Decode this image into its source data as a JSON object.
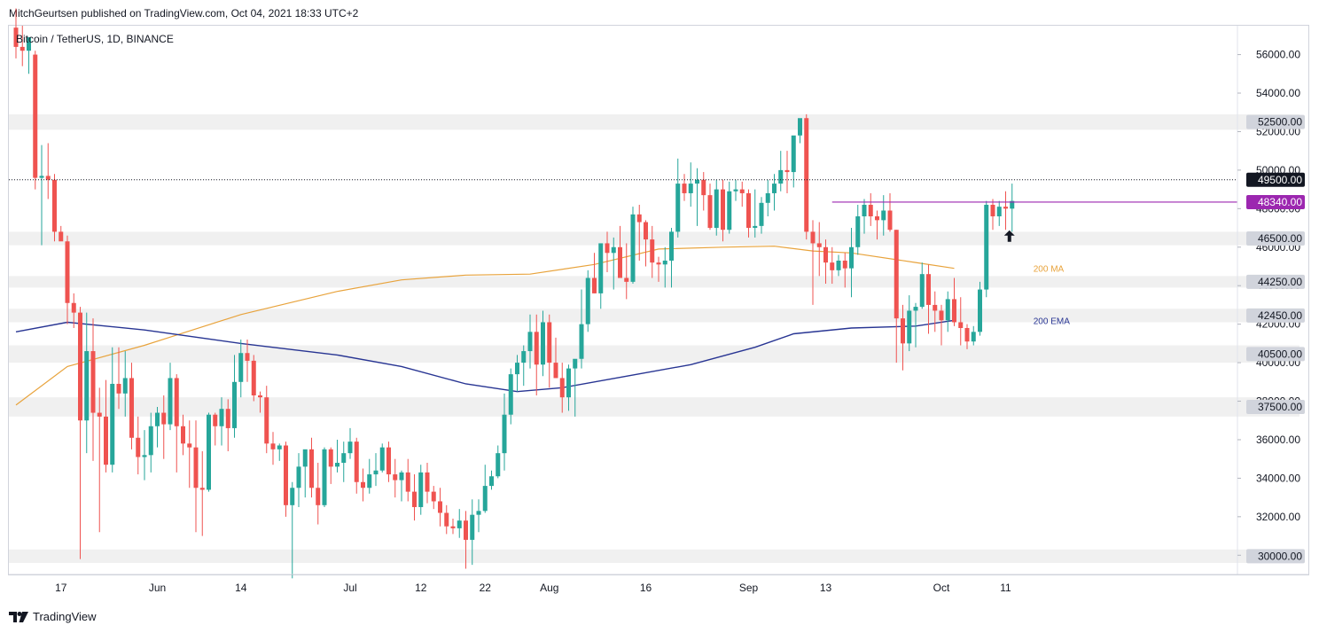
{
  "header": {
    "published": "MitchGeurtsen published on TradingView.com, Oct 04, 2021 18:33 UTC+2",
    "symbol": "Bitcoin / TetherUS, 1D, BINANCE"
  },
  "footer": {
    "brand": "TradingView"
  },
  "colors": {
    "up": "#26a69a",
    "down": "#ef5350",
    "ma": "#e8a33c",
    "ema": "#283593",
    "resistance": "#9c27b0",
    "zone": "#f0f0f0",
    "tag": "#d1d4dc",
    "price_tag": "#131722"
  },
  "chart_data": {
    "type": "candlestick",
    "title": "Bitcoin / TetherUS, 1D, BINANCE",
    "ylim": [
      29000,
      57500
    ],
    "y_ticks": [
      30000,
      32000,
      34000,
      36000,
      38000,
      40000,
      42000,
      44000,
      46000,
      48000,
      50000,
      52000,
      54000,
      56000
    ],
    "y_tick_labels": [
      "30000.00",
      "32000.00",
      "34000.00",
      "36000.00",
      "38000.00",
      "40000.00",
      "42000.00",
      "44000.00",
      "46000.00",
      "48000.00",
      "50000.00",
      "52000.00",
      "54000.00",
      "56000.00"
    ],
    "x_ticks": [
      {
        "index": 7,
        "label": "17"
      },
      {
        "index": 22,
        "label": "Jun"
      },
      {
        "index": 35,
        "label": "14"
      },
      {
        "index": 52,
        "label": "Jul"
      },
      {
        "index": 63,
        "label": "12"
      },
      {
        "index": 73,
        "label": "22"
      },
      {
        "index": 83,
        "label": "Aug"
      },
      {
        "index": 98,
        "label": "16"
      },
      {
        "index": 114,
        "label": "Sep"
      },
      {
        "index": 126,
        "label": "13"
      },
      {
        "index": 144,
        "label": "Oct"
      },
      {
        "index": 154,
        "label": "11"
      }
    ],
    "zones": [
      {
        "label": "52500.00",
        "from": 52100,
        "to": 52900
      },
      {
        "label": "46500.00",
        "from": 46100,
        "to": 46800
      },
      {
        "label": "44250.00",
        "from": 43900,
        "to": 44500
      },
      {
        "label": "42450.00",
        "from": 42100,
        "to": 42800
      },
      {
        "label": "40500.00",
        "from": 40000,
        "to": 40900
      },
      {
        "label": "37500.00",
        "from": 37200,
        "to": 38200
      },
      {
        "label": "30000.00",
        "from": 29600,
        "to": 30300
      }
    ],
    "current_price": {
      "label": "49500.00",
      "value": 49500
    },
    "resistance": {
      "label": "48340.00",
      "value": 48340,
      "start_index": 127
    },
    "indicators": {
      "ma_label": "200 MA",
      "ema_label": "200 EMA",
      "ma": [
        [
          0,
          37800
        ],
        [
          8,
          39800
        ],
        [
          20,
          40900
        ],
        [
          35,
          42500
        ],
        [
          50,
          43700
        ],
        [
          60,
          44300
        ],
        [
          70,
          44550
        ],
        [
          80,
          44600
        ],
        [
          90,
          45100
        ],
        [
          100,
          45900
        ],
        [
          110,
          46000
        ],
        [
          118,
          46050
        ],
        [
          124,
          45800
        ],
        [
          130,
          45700
        ],
        [
          140,
          45200
        ],
        [
          146,
          44900
        ]
      ],
      "ema": [
        [
          0,
          41600
        ],
        [
          8,
          42100
        ],
        [
          20,
          41700
        ],
        [
          35,
          41000
        ],
        [
          50,
          40400
        ],
        [
          60,
          39800
        ],
        [
          70,
          38900
        ],
        [
          78,
          38500
        ],
        [
          85,
          38700
        ],
        [
          95,
          39300
        ],
        [
          105,
          39900
        ],
        [
          115,
          40800
        ],
        [
          121,
          41500
        ],
        [
          130,
          41800
        ],
        [
          140,
          41900
        ],
        [
          146,
          42200
        ]
      ]
    },
    "candles": [
      [
        57400,
        58400,
        55800,
        56400
      ],
      [
        56400,
        57500,
        55400,
        56200
      ],
      [
        56200,
        56900,
        55000,
        56900
      ],
      [
        56000,
        56200,
        49000,
        49600
      ],
      [
        49600,
        51300,
        46100,
        49700
      ],
      [
        49700,
        51400,
        48500,
        49500
      ],
      [
        49500,
        49800,
        46300,
        46800
      ],
      [
        46800,
        47100,
        46500,
        46300
      ],
      [
        46300,
        46600,
        42000,
        43100
      ],
      [
        43100,
        43600,
        41800,
        42600
      ],
      [
        42600,
        42900,
        29800,
        37000
      ],
      [
        37000,
        42600,
        35300,
        40600
      ],
      [
        40600,
        42300,
        34900,
        37400
      ],
      [
        37400,
        38700,
        31200,
        37200
      ],
      [
        37200,
        39100,
        34300,
        34700
      ],
      [
        34700,
        40800,
        34300,
        38900
      ],
      [
        38900,
        40800,
        37600,
        38400
      ],
      [
        38400,
        40600,
        37200,
        39200
      ],
      [
        39200,
        40000,
        35500,
        36100
      ],
      [
        36100,
        37200,
        34200,
        35100
      ],
      [
        35100,
        36500,
        33900,
        35200
      ],
      [
        35200,
        37400,
        34300,
        36700
      ],
      [
        36700,
        37700,
        35600,
        37400
      ],
      [
        37400,
        38300,
        35000,
        36800
      ],
      [
        36800,
        40000,
        36500,
        39200
      ],
      [
        39200,
        39400,
        34300,
        36700
      ],
      [
        36700,
        37300,
        35200,
        35800
      ],
      [
        35800,
        37000,
        33500,
        35600
      ],
      [
        35600,
        37000,
        31200,
        33500
      ],
      [
        33500,
        35400,
        31000,
        33400
      ],
      [
        33400,
        37400,
        33300,
        37300
      ],
      [
        37300,
        37400,
        35700,
        36700
      ],
      [
        36700,
        38200,
        35700,
        37600
      ],
      [
        37600,
        38100,
        35400,
        36600
      ],
      [
        36600,
        40400,
        36100,
        39000
      ],
      [
        39000,
        41200,
        38200,
        40500
      ],
      [
        40500,
        41200,
        39000,
        40100
      ],
      [
        40100,
        40400,
        38000,
        38300
      ],
      [
        38300,
        38500,
        37400,
        38200
      ],
      [
        38200,
        38800,
        35300,
        35800
      ],
      [
        35800,
        36400,
        34700,
        35500
      ],
      [
        35500,
        35800,
        34900,
        35700
      ],
      [
        35700,
        35900,
        32000,
        32600
      ],
      [
        32600,
        33800,
        28800,
        33500
      ],
      [
        33500,
        35300,
        32500,
        34600
      ],
      [
        34600,
        35300,
        33000,
        35500
      ],
      [
        35500,
        36100,
        33000,
        33500
      ],
      [
        33500,
        34800,
        31600,
        32600
      ],
      [
        32600,
        35600,
        32500,
        35500
      ],
      [
        35500,
        35600,
        33700,
        34600
      ],
      [
        34600,
        36000,
        34300,
        34800
      ],
      [
        34800,
        35900,
        33800,
        35300
      ],
      [
        35300,
        36600,
        35000,
        35900
      ],
      [
        35900,
        36100,
        33200,
        33800
      ],
      [
        33800,
        34500,
        32800,
        33500
      ],
      [
        33500,
        35000,
        33200,
        34200
      ],
      [
        34200,
        35300,
        33600,
        34400
      ],
      [
        34400,
        35800,
        34300,
        35600
      ],
      [
        35600,
        35900,
        33800,
        34200
      ],
      [
        34200,
        35000,
        33000,
        33900
      ],
      [
        33900,
        34400,
        32800,
        34300
      ],
      [
        34300,
        35000,
        32800,
        33300
      ],
      [
        33300,
        34200,
        31800,
        32500
      ],
      [
        32500,
        34700,
        32100,
        34300
      ],
      [
        34300,
        34800,
        32700,
        33300
      ],
      [
        33300,
        33600,
        32400,
        32800
      ],
      [
        32800,
        33500,
        31500,
        32200
      ],
      [
        32200,
        32600,
        31100,
        31500
      ],
      [
        31500,
        31900,
        31100,
        31400
      ],
      [
        31400,
        32400,
        30900,
        31800
      ],
      [
        31800,
        32300,
        29300,
        30800
      ],
      [
        30800,
        32900,
        29500,
        32100
      ],
      [
        32100,
        32900,
        31200,
        32300
      ],
      [
        32300,
        34700,
        32200,
        33600
      ],
      [
        33600,
        34400,
        33400,
        34100
      ],
      [
        34100,
        35700,
        34000,
        35300
      ],
      [
        35300,
        38400,
        34400,
        37300
      ],
      [
        37300,
        39700,
        36800,
        39400
      ],
      [
        39400,
        40400,
        38500,
        40000
      ],
      [
        40000,
        40900,
        38800,
        40600
      ],
      [
        40600,
        42500,
        39700,
        41600
      ],
      [
        41600,
        42500,
        38300,
        39900
      ],
      [
        39900,
        42700,
        39300,
        42100
      ],
      [
        42100,
        42500,
        38700,
        40000
      ],
      [
        40000,
        41300,
        39200,
        39200
      ],
      [
        39200,
        40000,
        37400,
        38200
      ],
      [
        38200,
        39900,
        37500,
        39700
      ],
      [
        39700,
        40100,
        37200,
        40200
      ],
      [
        40200,
        43800,
        39700,
        42000
      ],
      [
        42000,
        44800,
        41600,
        44400
      ],
      [
        44400,
        45700,
        43600,
        43600
      ],
      [
        43600,
        46000,
        42800,
        46200
      ],
      [
        46200,
        46800,
        44700,
        45700
      ],
      [
        45700,
        46500,
        43800,
        46000
      ],
      [
        46000,
        47100,
        44400,
        44400
      ],
      [
        44400,
        46200,
        43300,
        44200
      ],
      [
        44200,
        48100,
        44100,
        47700
      ],
      [
        47700,
        48200,
        45300,
        47300
      ],
      [
        47300,
        47400,
        45000,
        46400
      ],
      [
        46400,
        47100,
        44400,
        45200
      ],
      [
        45200,
        45500,
        44200,
        45100
      ],
      [
        45100,
        46000,
        43900,
        45300
      ],
      [
        45300,
        47000,
        43900,
        46800
      ],
      [
        46800,
        50600,
        46500,
        49300
      ],
      [
        49300,
        49800,
        48400,
        48800
      ],
      [
        48800,
        50400,
        48100,
        49300
      ],
      [
        49300,
        50100,
        47100,
        49500
      ],
      [
        49500,
        49900,
        47900,
        48700
      ],
      [
        48700,
        49300,
        46900,
        47000
      ],
      [
        47000,
        49500,
        46600,
        49000
      ],
      [
        49000,
        49500,
        46300,
        46900
      ],
      [
        46900,
        49400,
        46700,
        48900
      ],
      [
        48900,
        49500,
        48400,
        49000
      ],
      [
        49000,
        49400,
        48100,
        48800
      ],
      [
        48800,
        49000,
        46500,
        47000
      ],
      [
        47000,
        49000,
        46500,
        47100
      ],
      [
        47100,
        48600,
        46700,
        48300
      ],
      [
        48300,
        49500,
        47600,
        48800
      ],
      [
        48800,
        49800,
        47900,
        49300
      ],
      [
        49300,
        51000,
        48900,
        50000
      ],
      [
        50000,
        51000,
        48800,
        49900
      ],
      [
        49900,
        51600,
        49100,
        51800
      ],
      [
        51800,
        52600,
        51400,
        52700
      ],
      [
        52700,
        52900,
        46400,
        46800
      ],
      [
        46800,
        47400,
        43000,
        46200
      ],
      [
        46200,
        47300,
        44500,
        46000
      ],
      [
        46000,
        46400,
        44100,
        45200
      ],
      [
        45200,
        46000,
        44100,
        44800
      ],
      [
        44800,
        45600,
        44500,
        45300
      ],
      [
        45300,
        45700,
        43900,
        44900
      ],
      [
        44900,
        47000,
        43400,
        46000
      ],
      [
        46000,
        48200,
        45600,
        47600
      ],
      [
        47600,
        48500,
        46700,
        48200
      ],
      [
        48200,
        48800,
        47100,
        47600
      ],
      [
        47600,
        47900,
        46400,
        47400
      ],
      [
        47400,
        48700,
        46600,
        47900
      ],
      [
        47900,
        48800,
        46800,
        46900
      ],
      [
        46900,
        46900,
        40000,
        42300
      ],
      [
        42300,
        43000,
        39600,
        41000
      ],
      [
        41000,
        43500,
        40600,
        42700
      ],
      [
        42700,
        43100,
        40800,
        42900
      ],
      [
        42900,
        45200,
        42800,
        44600
      ],
      [
        44600,
        45100,
        41500,
        43000
      ],
      [
        43000,
        43700,
        41600,
        42700
      ],
      [
        42700,
        43000,
        40900,
        42200
      ],
      [
        42200,
        43700,
        41600,
        43300
      ],
      [
        43300,
        44400,
        41900,
        42100
      ],
      [
        42100,
        43400,
        40900,
        41800
      ],
      [
        41800,
        42000,
        40700,
        41100
      ],
      [
        41100,
        41900,
        40900,
        41600
      ],
      [
        41600,
        44200,
        41400,
        43800
      ],
      [
        43800,
        48400,
        43400,
        48200
      ],
      [
        48200,
        48500,
        46900,
        47600
      ],
      [
        47600,
        48400,
        47100,
        48100
      ],
      [
        48100,
        48900,
        46900,
        48000
      ],
      [
        48000,
        49300,
        46800,
        48400
      ]
    ]
  }
}
